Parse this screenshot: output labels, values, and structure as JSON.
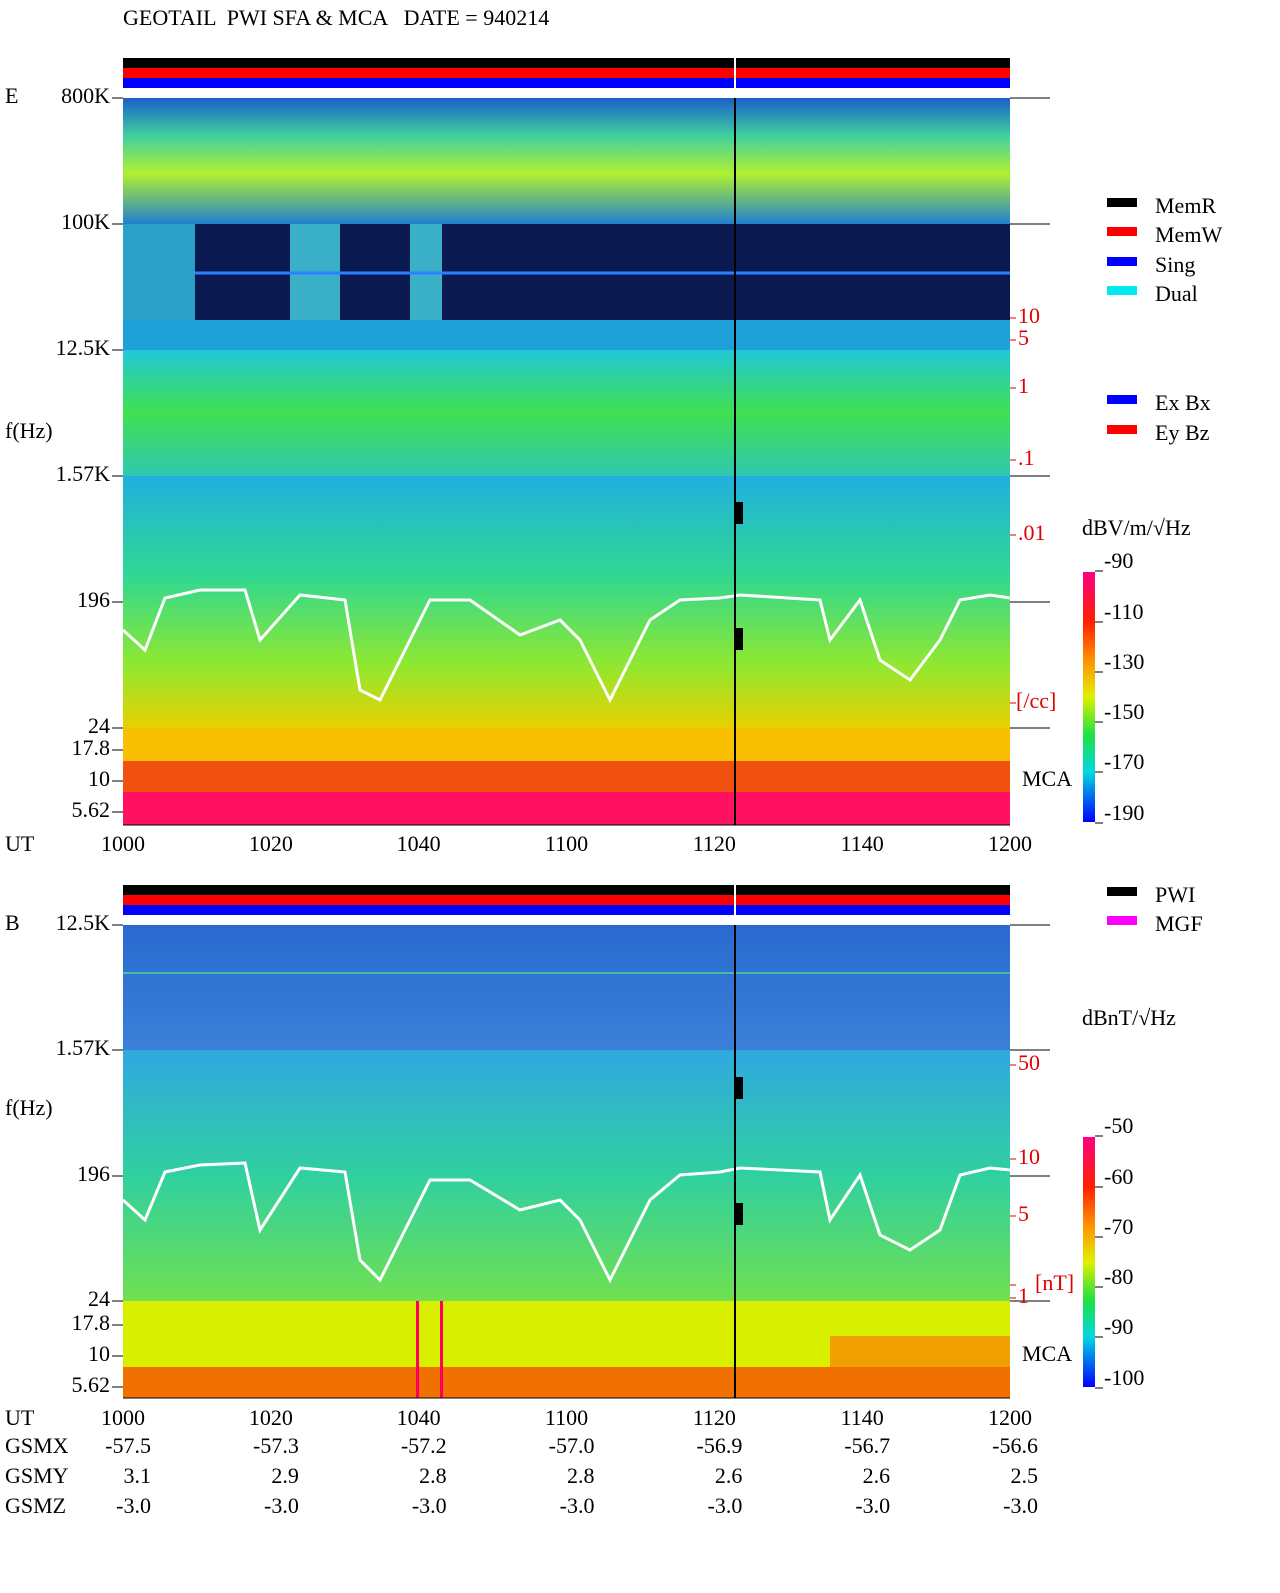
{
  "title": "GEOTAIL  PWI SFA & MCA   DATE = 940214",
  "panels": [
    {
      "label": "E",
      "y_axis_label": "f(Hz)",
      "y_ticks": [
        "800K",
        "100K",
        "12.5K",
        "1.57K",
        "196",
        "24",
        "17.8",
        "10",
        "5.62"
      ],
      "right_scale": [
        "10",
        "5",
        "1",
        ".1",
        ".01",
        "[/cc]"
      ],
      "mca_label": "MCA",
      "legend": [
        {
          "name": "MemR",
          "color": "#000000"
        },
        {
          "name": "MemW",
          "color": "#ff0000"
        },
        {
          "name": "Sing",
          "color": "#0000ff"
        },
        {
          "name": "Dual",
          "color": "#00e8f0"
        }
      ],
      "legend2": [
        {
          "name": "Ex Bx",
          "color": "#0000ff"
        },
        {
          "name": "Ey Bz",
          "color": "#ff0000"
        }
      ],
      "colorbar": {
        "title": "dBV/m/√Hz",
        "ticks": [
          "-90",
          "-110",
          "-130",
          "-150",
          "-170",
          "-190"
        ]
      }
    },
    {
      "label": "B",
      "y_axis_label": "f(Hz)",
      "y_ticks": [
        "12.5K",
        "1.57K",
        "196",
        "24",
        "17.8",
        "10",
        "5.62"
      ],
      "right_scale": [
        "50",
        "10",
        "5",
        "1",
        "[nT]"
      ],
      "mca_label": "MCA",
      "legend": [
        {
          "name": "PWI",
          "color": "#000000"
        },
        {
          "name": "MGF",
          "color": "#ff00ff"
        }
      ],
      "colorbar": {
        "title": "dBnT/√Hz",
        "ticks": [
          "-50",
          "-60",
          "-70",
          "-80",
          "-90",
          "-100"
        ]
      }
    }
  ],
  "x_axis": {
    "label": "UT",
    "ticks": [
      "1000",
      "1020",
      "1040",
      "1100",
      "1120",
      "1140",
      "1200"
    ]
  },
  "orbit": [
    {
      "label": "GSMX",
      "values": [
        "-57.5",
        "-57.3",
        "-57.2",
        "-57.0",
        "-56.9",
        "-56.7",
        "-56.6"
      ]
    },
    {
      "label": "GSMY",
      "values": [
        "3.1",
        "2.9",
        "2.8",
        "2.8",
        "2.6",
        "2.6",
        "2.5"
      ]
    },
    {
      "label": "GSMZ",
      "values": [
        "-3.0",
        "-3.0",
        "-3.0",
        "-3.0",
        "-3.0",
        "-3.0",
        "-3.0"
      ]
    }
  ]
}
